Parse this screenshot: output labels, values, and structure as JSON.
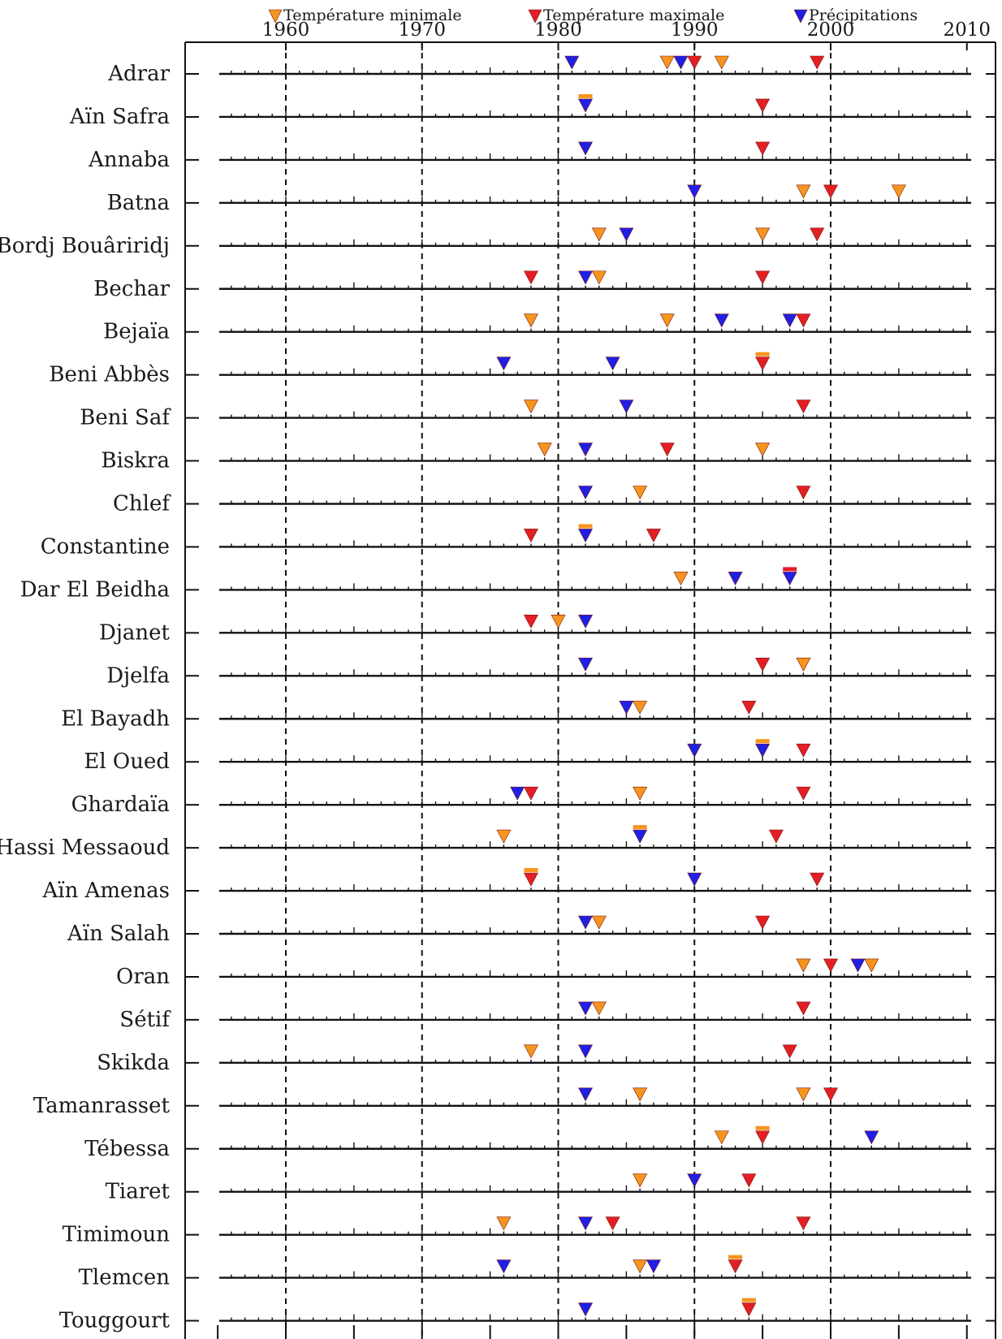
{
  "chart_data": {
    "type": "scatter",
    "title": "",
    "xlabel": "",
    "ylabel": "",
    "xlim": [
      1955,
      2010
    ],
    "x_ticks": [
      "1960",
      "1970",
      "1980",
      "1990",
      "2000",
      "2010"
    ],
    "x_tick_values": [
      1960,
      1970,
      1980,
      1990,
      2000,
      2010
    ],
    "gridlines_x": [
      1960,
      1970,
      1980,
      1990,
      2000
    ],
    "legend_position": "top",
    "series": [
      {
        "key": "tmin",
        "name": "Température minimale",
        "color": "#f7941d"
      },
      {
        "key": "tmax",
        "name": "Température maximale",
        "color": "#e31e24"
      },
      {
        "key": "prec",
        "name": "Précipitations",
        "color": "#1f1fe6"
      }
    ],
    "stations": [
      {
        "name": "Adrar",
        "tmin": [
          1988,
          1992
        ],
        "tmax": [
          1990,
          1999
        ],
        "prec": [
          1981,
          1989
        ]
      },
      {
        "name": "Aïn Safra",
        "tmin": [
          1982
        ],
        "tmax": [
          1995
        ],
        "prec": [
          1982
        ]
      },
      {
        "name": "Annaba",
        "tmin": [],
        "tmax": [
          1995
        ],
        "prec": [
          1982
        ]
      },
      {
        "name": "Batna",
        "tmin": [
          1998,
          2005
        ],
        "tmax": [
          2000
        ],
        "prec": [
          1990
        ]
      },
      {
        "name": "Bordj Bouâriridj",
        "tmin": [
          1983,
          1995
        ],
        "tmax": [
          1999
        ],
        "prec": [
          1985
        ]
      },
      {
        "name": "Bechar",
        "tmin": [
          1983
        ],
        "tmax": [
          1978,
          1995
        ],
        "prec": [
          1982
        ]
      },
      {
        "name": "Bejaïa",
        "tmin": [
          1978,
          1988
        ],
        "tmax": [
          1998
        ],
        "prec": [
          1992,
          1997
        ]
      },
      {
        "name": "Beni Abbès",
        "tmin": [
          1995
        ],
        "tmax": [
          1995
        ],
        "prec": [
          1976,
          1984
        ]
      },
      {
        "name": "Beni Saf",
        "tmin": [
          1978
        ],
        "tmax": [
          1998
        ],
        "prec": [
          1985
        ]
      },
      {
        "name": "Biskra",
        "tmin": [
          1979,
          1995
        ],
        "tmax": [
          1988
        ],
        "prec": [
          1982
        ]
      },
      {
        "name": "Chlef",
        "tmin": [
          1986
        ],
        "tmax": [
          1998
        ],
        "prec": [
          1982
        ]
      },
      {
        "name": "Constantine",
        "tmin": [
          1982
        ],
        "tmax": [
          1978,
          1987
        ],
        "prec": [
          1982
        ]
      },
      {
        "name": "Dar El Beidha",
        "tmin": [
          1989
        ],
        "tmax": [
          1997
        ],
        "prec": [
          1993,
          1997
        ]
      },
      {
        "name": "Djanet",
        "tmin": [
          1980
        ],
        "tmax": [
          1978
        ],
        "prec": [
          1982
        ]
      },
      {
        "name": "Djelfa",
        "tmin": [
          1998
        ],
        "tmax": [
          1995
        ],
        "prec": [
          1982
        ]
      },
      {
        "name": "El Bayadh",
        "tmin": [
          1986
        ],
        "tmax": [
          1994
        ],
        "prec": [
          1985
        ]
      },
      {
        "name": "El Oued",
        "tmin": [
          1995
        ],
        "tmax": [
          1998
        ],
        "prec": [
          1990,
          1995
        ]
      },
      {
        "name": "Ghardaïa",
        "tmin": [
          1986
        ],
        "tmax": [
          1978,
          1998
        ],
        "prec": [
          1977
        ]
      },
      {
        "name": "Hassi Messaoud",
        "tmin": [
          1976,
          1986
        ],
        "tmax": [
          1996
        ],
        "prec": [
          1986
        ]
      },
      {
        "name": "Aïn Amenas",
        "tmin": [
          1978
        ],
        "tmax": [
          1978,
          1999
        ],
        "prec": [
          1990
        ]
      },
      {
        "name": "Aïn Salah",
        "tmin": [
          1983
        ],
        "tmax": [
          1995
        ],
        "prec": [
          1982
        ]
      },
      {
        "name": "Oran",
        "tmin": [
          1998,
          2003
        ],
        "tmax": [
          2000
        ],
        "prec": [
          2002
        ]
      },
      {
        "name": "Sétif",
        "tmin": [
          1983
        ],
        "tmax": [
          1998
        ],
        "prec": [
          1982
        ]
      },
      {
        "name": "Skikda",
        "tmin": [
          1978
        ],
        "tmax": [
          1997
        ],
        "prec": [
          1982
        ]
      },
      {
        "name": "Tamanrasset",
        "tmin": [
          1986,
          1998
        ],
        "tmax": [
          2000
        ],
        "prec": [
          1982
        ]
      },
      {
        "name": "Tébessa",
        "tmin": [
          1992,
          1995
        ],
        "tmax": [
          1995
        ],
        "prec": [
          2003
        ]
      },
      {
        "name": "Tiaret",
        "tmin": [
          1986
        ],
        "tmax": [
          1994
        ],
        "prec": [
          1990
        ]
      },
      {
        "name": "Timimoun",
        "tmin": [
          1976
        ],
        "tmax": [
          1984,
          1998
        ],
        "prec": [
          1982
        ]
      },
      {
        "name": "Tlemcen",
        "tmin": [
          1986,
          1993
        ],
        "tmax": [
          1993
        ],
        "prec": [
          1976,
          1987
        ]
      },
      {
        "name": "Touggourt",
        "tmin": [
          1994
        ],
        "tmax": [
          1994
        ],
        "prec": [
          1982
        ]
      }
    ]
  }
}
